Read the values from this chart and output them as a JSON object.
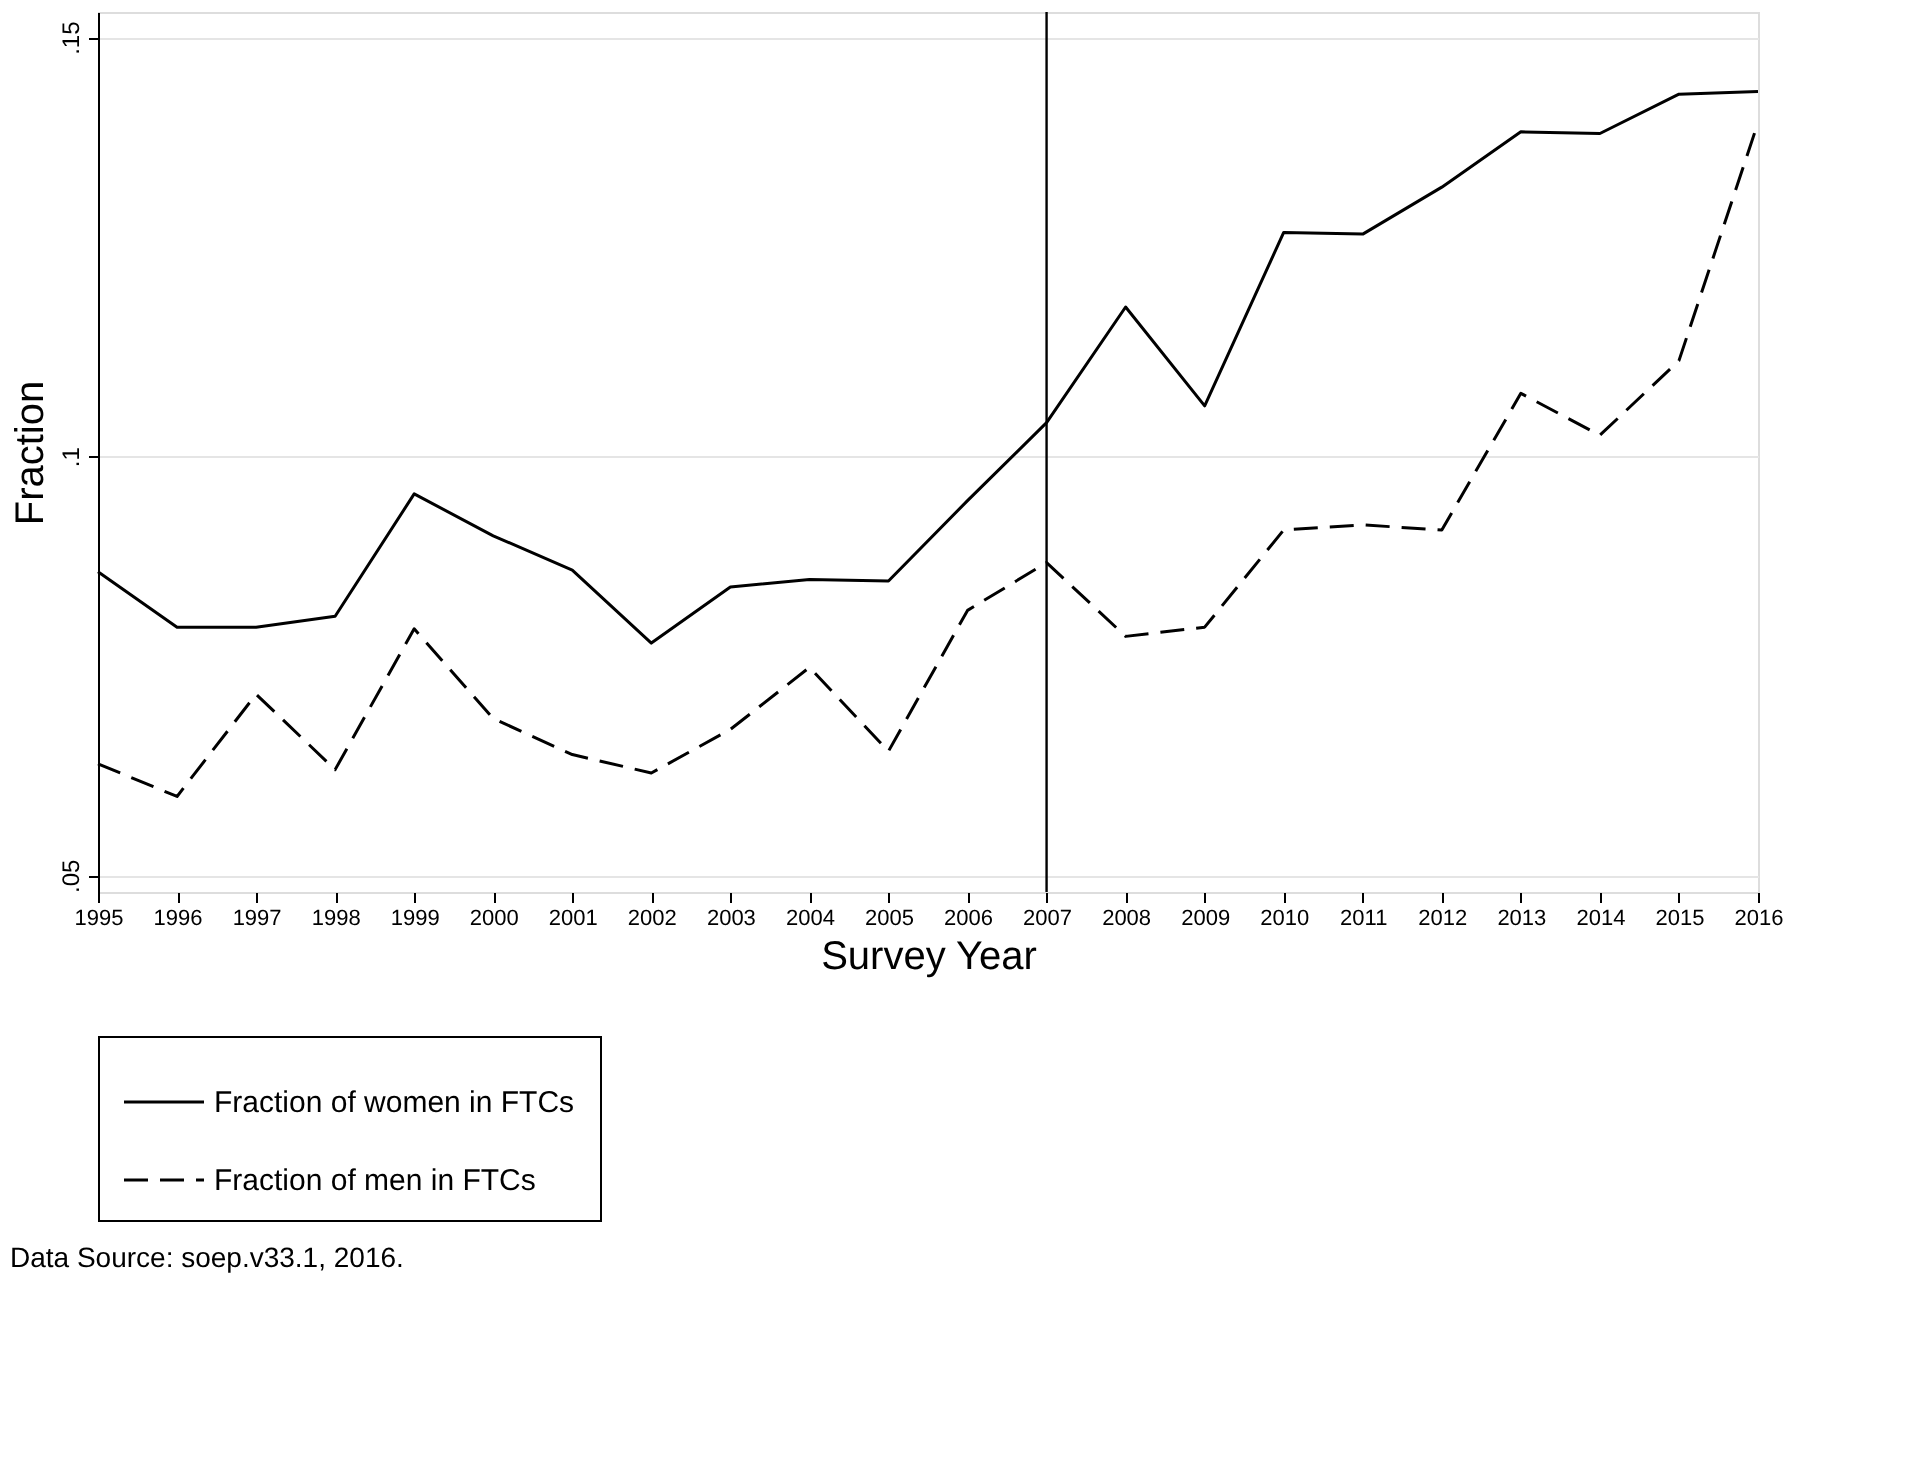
{
  "chart_data": {
    "type": "line",
    "xlabel": "Survey Year",
    "ylabel": "Fraction",
    "x": [
      1995,
      1996,
      1997,
      1998,
      1999,
      2000,
      2001,
      2002,
      2003,
      2004,
      2005,
      2006,
      2007,
      2008,
      2009,
      2010,
      2011,
      2012,
      2013,
      2014,
      2015,
      2016
    ],
    "series": [
      {
        "name": "Fraction of women in FTCs",
        "color": "#000000",
        "line_style": "solid",
        "values": [
          0.0862,
          0.0796,
          0.0796,
          0.0809,
          0.0955,
          0.0905,
          0.0864,
          0.0777,
          0.0844,
          0.0853,
          0.0851,
          0.0947,
          0.104,
          0.1178,
          0.106,
          0.1267,
          0.1265,
          0.1321,
          0.1387,
          0.1385,
          0.1432,
          0.1435
        ]
      },
      {
        "name": "Fraction of men in FTCs",
        "color": "#000000",
        "line_style": "dashed",
        "values": [
          0.0633,
          0.0594,
          0.0716,
          0.0626,
          0.0794,
          0.0687,
          0.0644,
          0.0622,
          0.0674,
          0.0748,
          0.0648,
          0.0816,
          0.0873,
          0.0785,
          0.0796,
          0.0912,
          0.0918,
          0.0912,
          0.1075,
          0.1025,
          0.1114,
          0.1398
        ]
      }
    ],
    "xlim": [
      1995,
      2016
    ],
    "xticks": [
      1995,
      1996,
      1997,
      1998,
      1999,
      2000,
      2001,
      2002,
      2003,
      2004,
      2005,
      2006,
      2007,
      2008,
      2009,
      2010,
      2011,
      2012,
      2013,
      2014,
      2015,
      2016
    ],
    "ylim": [
      0.048,
      0.153
    ],
    "yticks": [
      {
        "value": 0.05,
        "label": ".05"
      },
      {
        "value": 0.1,
        "label": ".1"
      },
      {
        "value": 0.15,
        "label": ".15"
      }
    ],
    "grid": "y",
    "legend": "bottom",
    "marker": "none",
    "ref_lines": [
      {
        "axis": "x",
        "value": 2007,
        "color": "#000000",
        "line_style": "solid"
      }
    ],
    "annotations": [
      "Data Source: soep.v33.1, 2016."
    ]
  }
}
